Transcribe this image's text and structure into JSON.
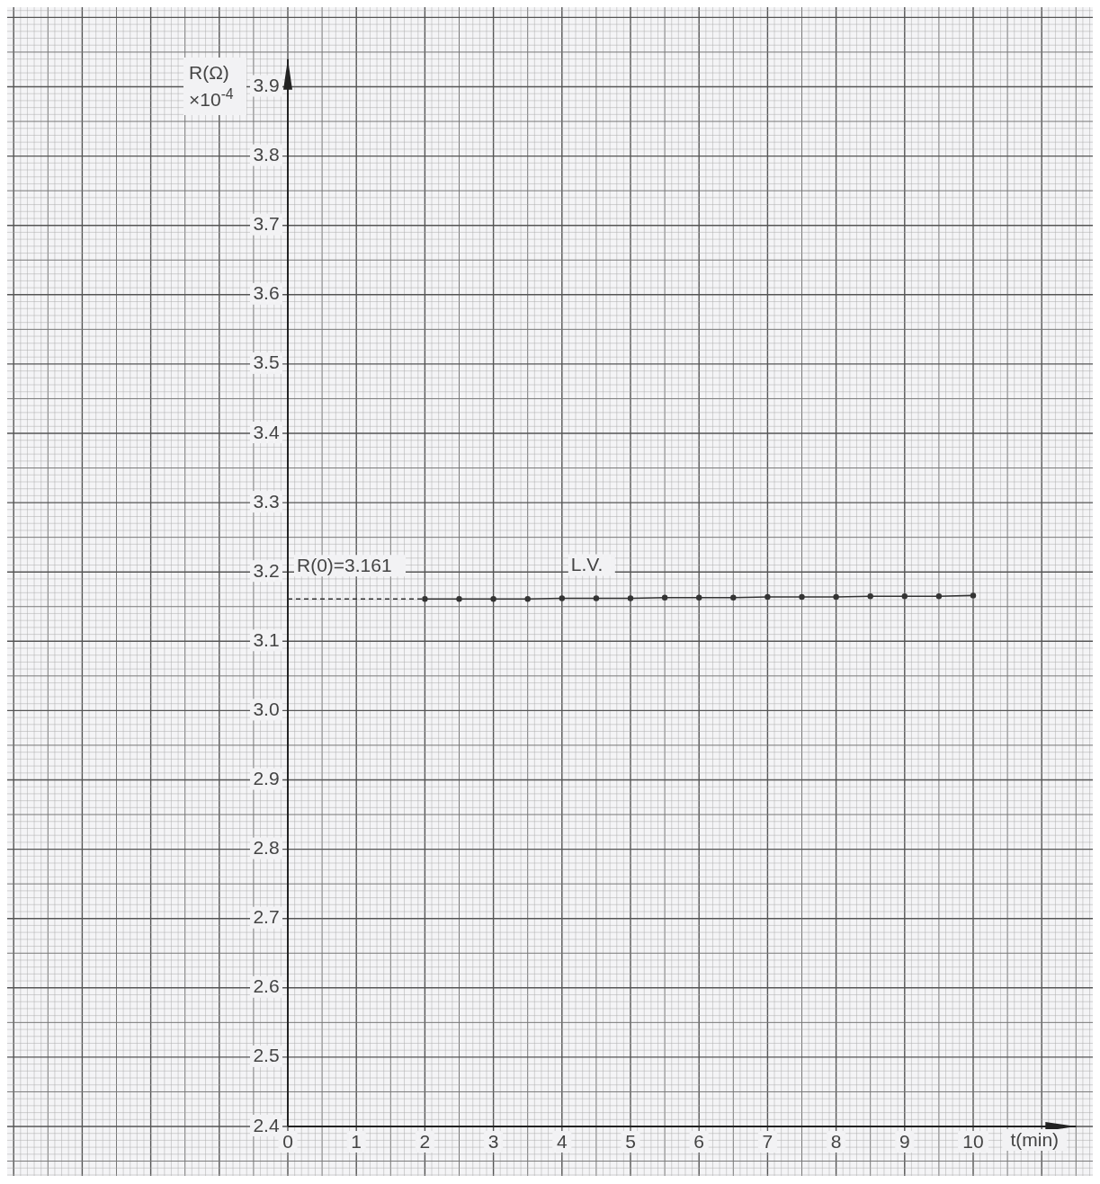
{
  "chart_data": {
    "type": "line",
    "xlabel": "t(min)",
    "ylabel": "R(Ω) ×10$^{-4}$",
    "xlim": [
      0,
      11.5
    ],
    "ylim": [
      2.4,
      3.94
    ],
    "xticks": [
      0,
      1,
      2,
      3,
      4,
      5,
      6,
      7,
      8,
      9,
      10
    ],
    "yticks": [
      2.4,
      2.5,
      2.6,
      2.7,
      2.8,
      2.9,
      {
        "value": 3,
        "label": "3.0"
      },
      3.1,
      3.2,
      3.3,
      3.4,
      3.5,
      3.6,
      3.7,
      3.8,
      3.9
    ],
    "grid": true,
    "series": [
      {
        "color": "#333333",
        "marker": "circle",
        "line_style": "solid",
        "x": [
          2,
          2.5,
          3,
          3.5,
          4,
          4.5,
          5,
          5.5,
          6,
          6.5,
          7,
          7.5,
          8,
          8.5,
          9,
          9.5,
          10
        ],
        "values": [
          3.161,
          3.161,
          3.161,
          3.161,
          3.162,
          3.162,
          3.162,
          3.163,
          3.163,
          3.163,
          3.164,
          3.164,
          3.164,
          3.165,
          3.165,
          3.165,
          3.166
        ]
      },
      {
        "color": "#333333",
        "marker": "none",
        "line_style": "dashed",
        "x": [
          0,
          2
        ],
        "values": [
          3.161,
          3.161
        ]
      }
    ],
    "annotations": [
      {
        "text": "R(0)=3.161",
        "x": 0,
        "y": 3.161
      },
      {
        "text": "L.V.",
        "x": 4,
        "y": 3.162
      }
    ]
  }
}
